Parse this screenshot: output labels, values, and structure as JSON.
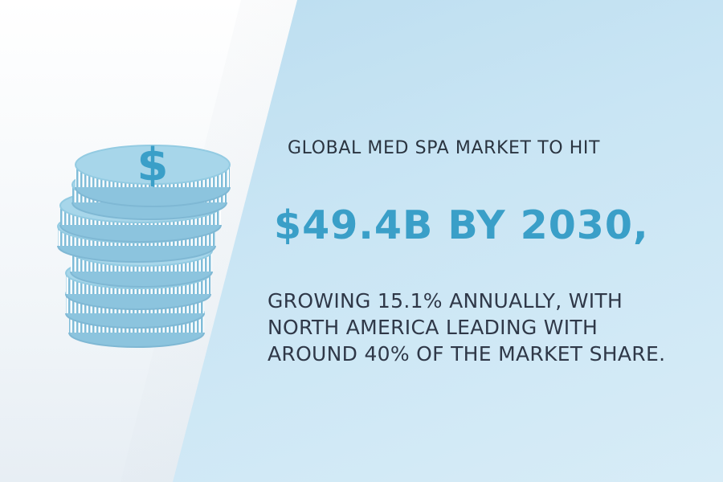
{
  "headline": "GLOBAL MED SPA MARKET TO HIT",
  "highlight": "$49.4B BY 2030,",
  "body": "GROWING 15.1% ANNUALLY, WITH NORTH AMERICA LEADING WITH AROUND 40% OF THE MARKET SHARE.",
  "coin_symbol": "$",
  "colors": {
    "accent": "#3a9fc8",
    "text": "#2f3848",
    "coin": "#a7d6ea"
  }
}
